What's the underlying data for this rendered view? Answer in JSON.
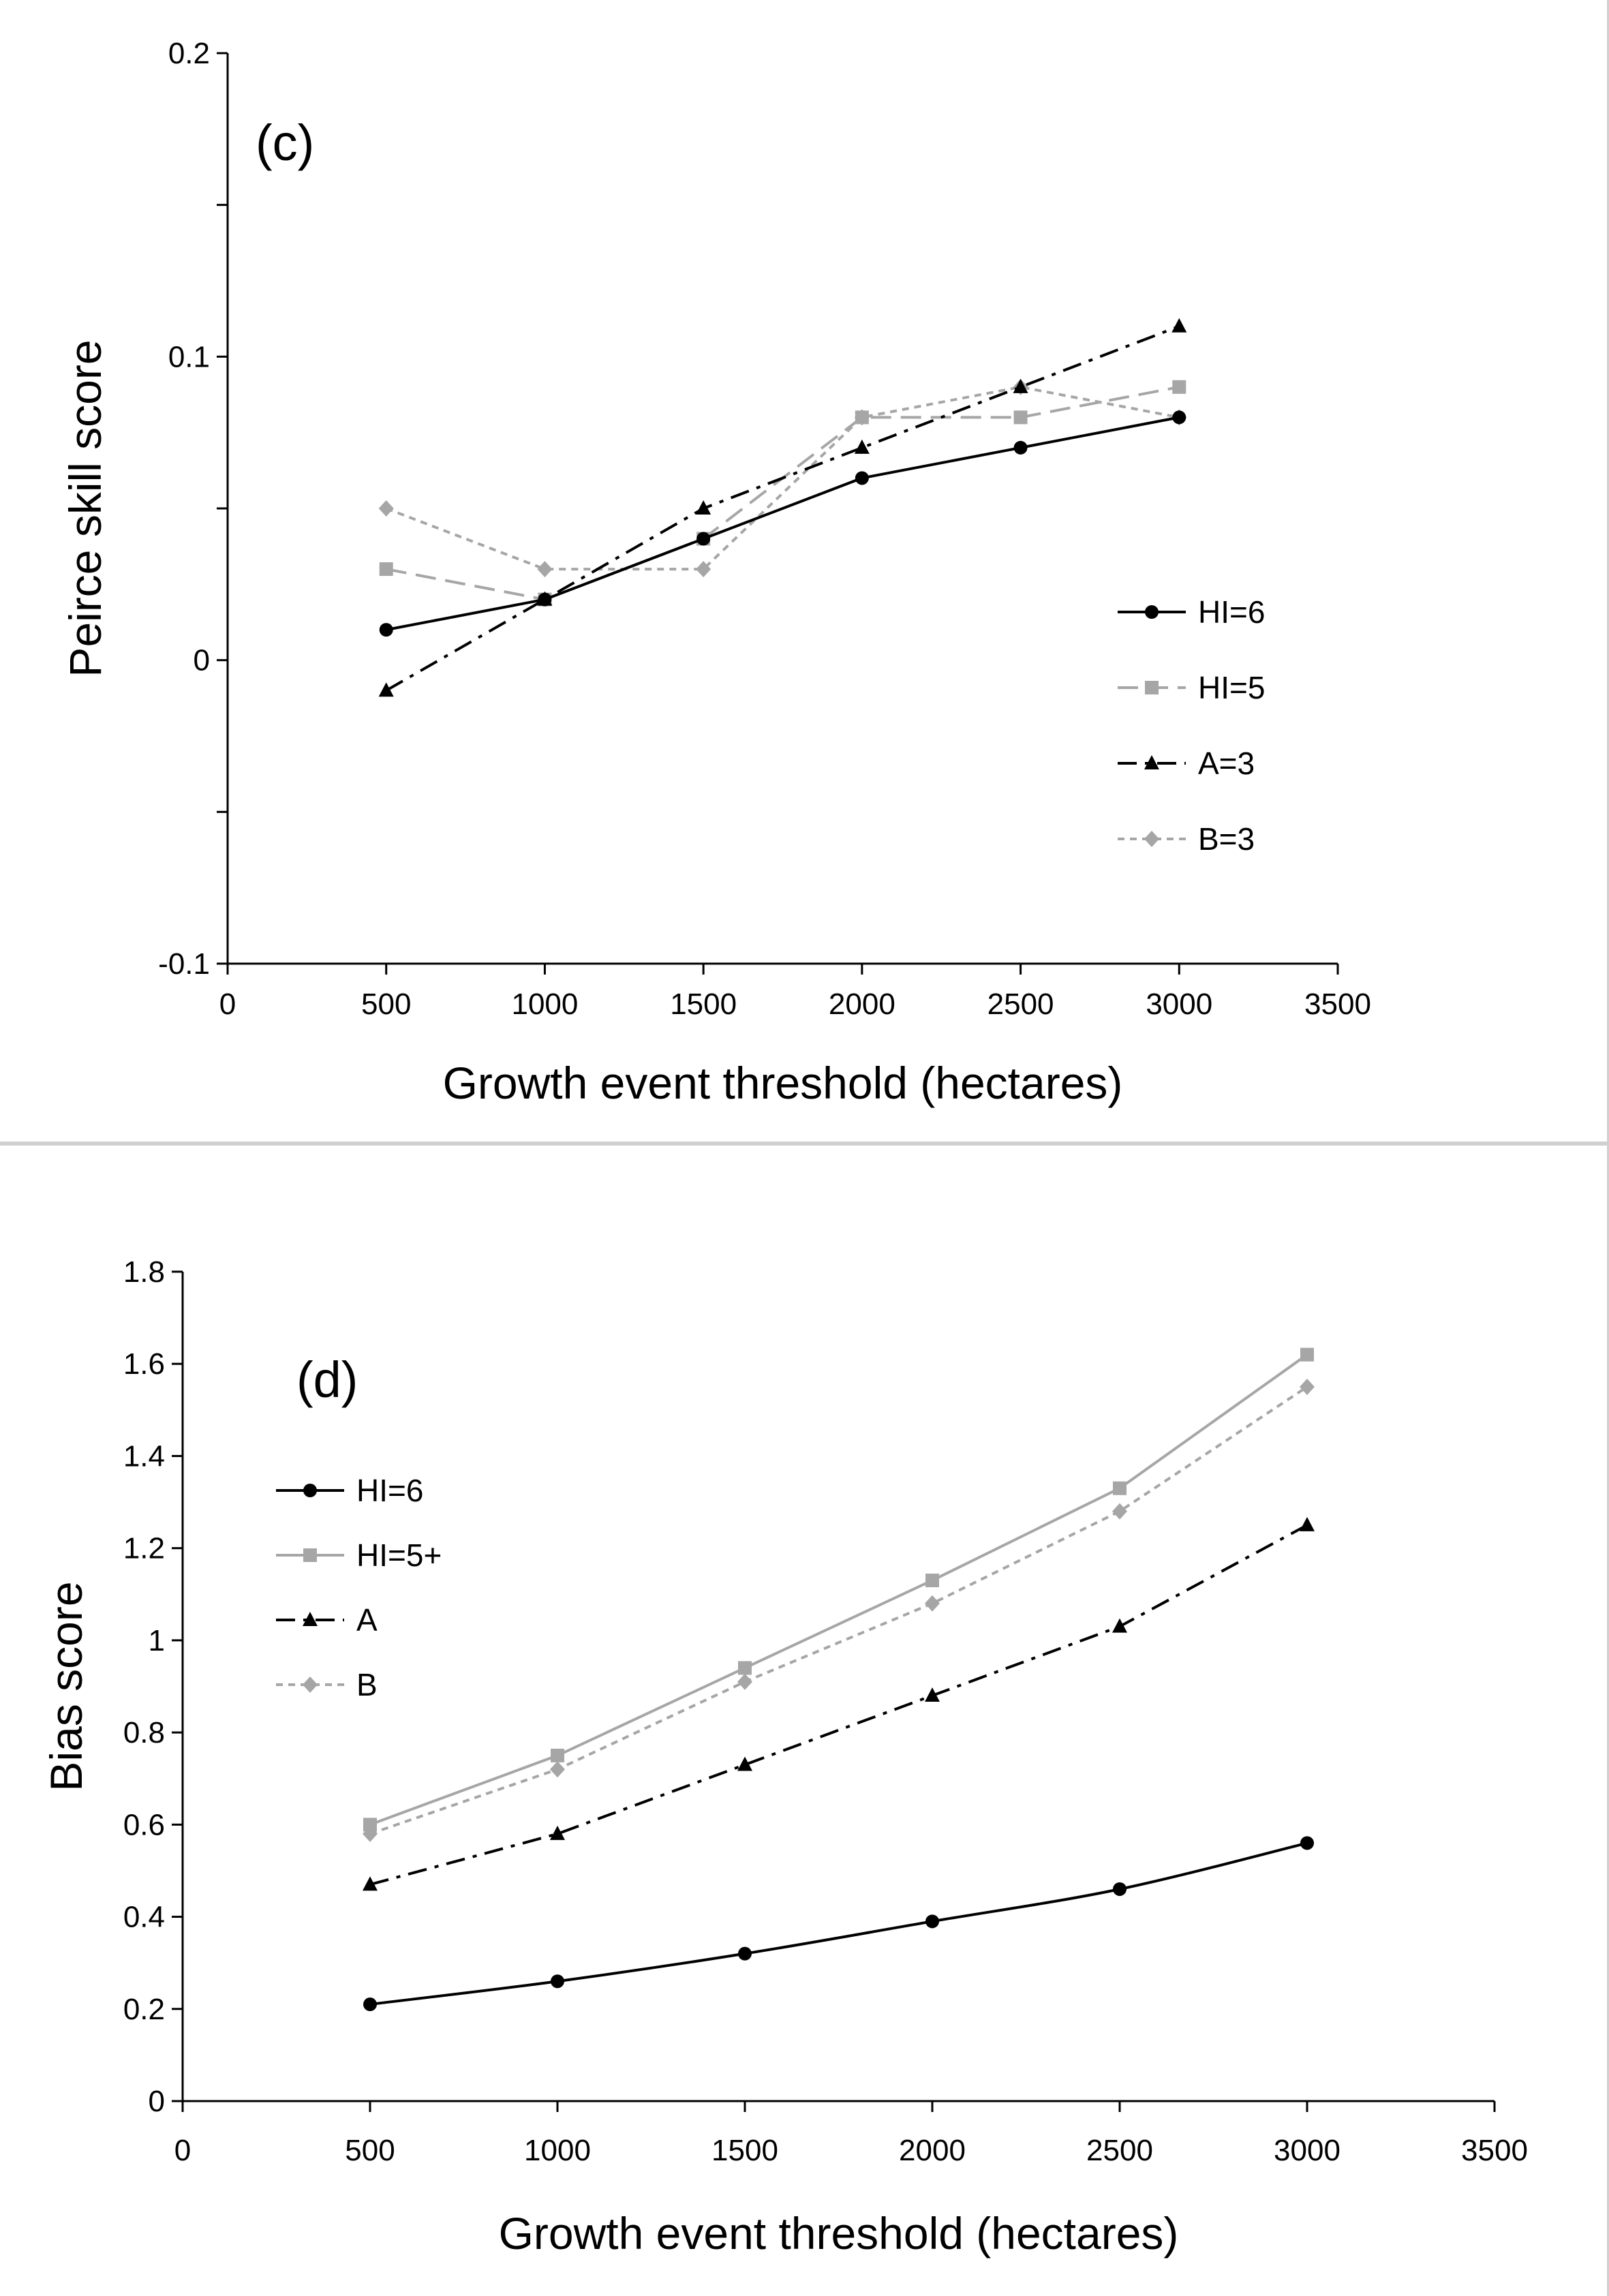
{
  "chart_data": [
    {
      "type": "line",
      "panel_label": "(c)",
      "xlabel": "Growth event threshold (hectares)",
      "ylabel": "Peirce skill score",
      "xlim": [
        0,
        3500
      ],
      "ylim": [
        -0.1,
        0.2
      ],
      "x_ticks": [
        "0",
        "500",
        "1000",
        "1500",
        "2000",
        "2500",
        "3000",
        "3500"
      ],
      "y_ticks": [
        "-0.1",
        "0",
        "0.1",
        "0.2"
      ],
      "x": [
        500,
        1000,
        1500,
        2000,
        2500,
        3000
      ],
      "legend_position": "right",
      "series": [
        {
          "name": "HI=6",
          "values": [
            0.01,
            0.02,
            0.04,
            0.06,
            0.07,
            0.08
          ],
          "color": "#000000",
          "dash": "solid",
          "marker": "circle"
        },
        {
          "name": "HI=5",
          "values": [
            0.03,
            0.02,
            0.04,
            0.08,
            0.08,
            0.09
          ],
          "color": "#a6a6a6",
          "dash": "longdash",
          "marker": "square"
        },
        {
          "name": "A=3",
          "values": [
            -0.01,
            0.02,
            0.05,
            0.07,
            0.09,
            0.11
          ],
          "color": "#000000",
          "dash": "dashdot",
          "marker": "triangle"
        },
        {
          "name": "B=3",
          "values": [
            0.05,
            0.03,
            0.03,
            0.08,
            0.09,
            0.08
          ],
          "color": "#a6a6a6",
          "dash": "dot",
          "marker": "diamond"
        }
      ]
    },
    {
      "type": "line",
      "panel_label": "(d)",
      "xlabel": "Growth event threshold (hectares)",
      "ylabel": "Bias score",
      "xlim": [
        0,
        3500
      ],
      "ylim": [
        0,
        1.8
      ],
      "x_ticks": [
        "0",
        "500",
        "1000",
        "1500",
        "2000",
        "2500",
        "3000",
        "3500"
      ],
      "y_ticks": [
        "0",
        "0.2",
        "0.4",
        "0.6",
        "0.8",
        "1",
        "1.2",
        "1.4",
        "1.6",
        "1.8"
      ],
      "x": [
        500,
        1000,
        1500,
        2000,
        2500,
        3000
      ],
      "legend_position": "left",
      "series": [
        {
          "name": "HI=6",
          "values": [
            0.21,
            0.26,
            0.32,
            0.39,
            0.46,
            0.56
          ],
          "color": "#000000",
          "dash": "solid",
          "marker": "circle"
        },
        {
          "name": "HI=5+",
          "values": [
            0.6,
            0.75,
            0.94,
            1.13,
            1.33,
            1.62
          ],
          "color": "#a6a6a6",
          "dash": "solid",
          "marker": "square"
        },
        {
          "name": "A",
          "values": [
            0.47,
            0.58,
            0.73,
            0.88,
            1.03,
            1.25
          ],
          "color": "#000000",
          "dash": "dashdot",
          "marker": "triangle"
        },
        {
          "name": "B",
          "values": [
            0.58,
            0.72,
            0.91,
            1.08,
            1.28,
            1.55
          ],
          "color": "#a6a6a6",
          "dash": "dot",
          "marker": "diamond"
        }
      ]
    }
  ]
}
